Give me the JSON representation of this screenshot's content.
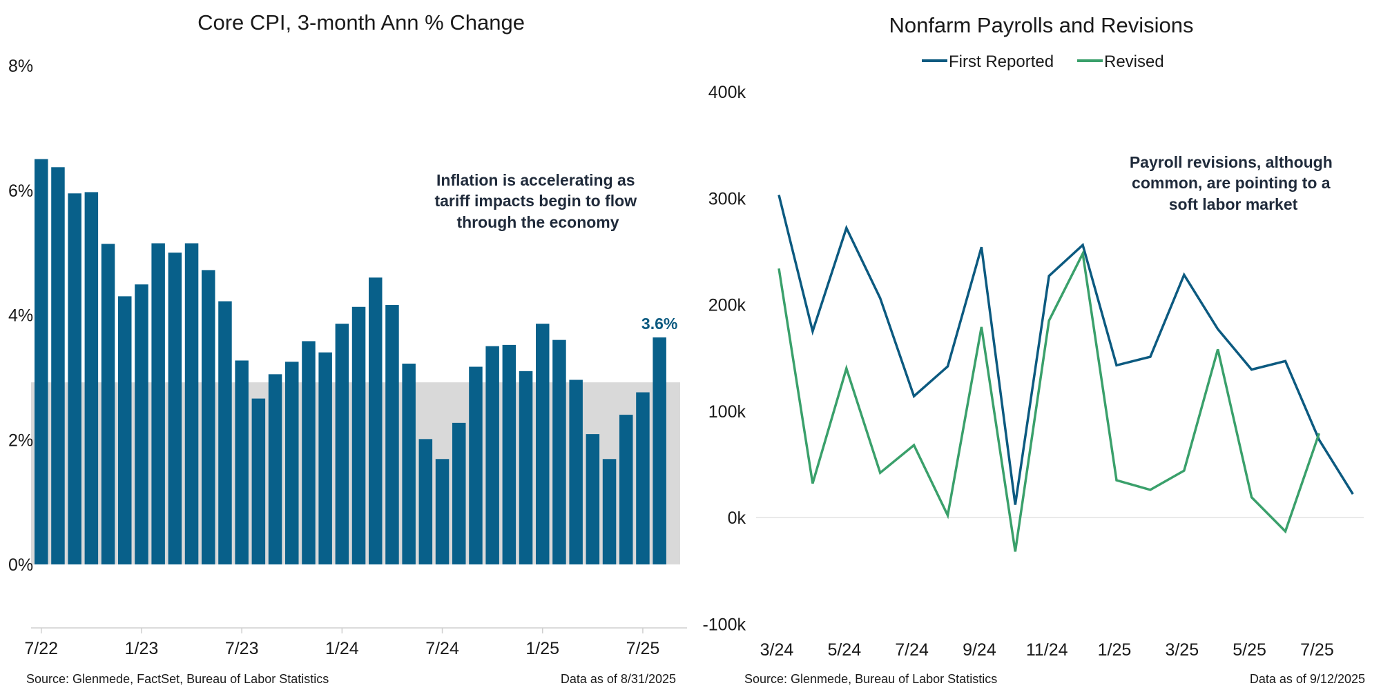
{
  "colors": {
    "bar": "#08608a",
    "band": "#d9d9d9",
    "first_reported": "#0c5a80",
    "revised": "#3aa06b",
    "axis": "#cfcfcf",
    "label": "#0c5a80"
  },
  "chart_data": [
    {
      "type": "bar",
      "title": "Core CPI, 3-month Ann % Change",
      "ylim": [
        -1,
        8
      ],
      "y_ticks": [
        "0%",
        "2%",
        "4%",
        "6%",
        "8%"
      ],
      "y_tick_values": [
        0,
        2,
        4,
        6,
        8
      ],
      "x_tick_labels": [
        "7/22",
        "1/23",
        "7/23",
        "1/24",
        "7/24",
        "1/25",
        "7/25"
      ],
      "x_tick_indices": [
        0,
        6,
        12,
        18,
        24,
        30,
        36
      ],
      "band": [
        0,
        2.92
      ],
      "values": [
        6.5,
        6.37,
        5.95,
        5.97,
        5.14,
        4.3,
        4.49,
        5.15,
        5.0,
        5.15,
        4.72,
        4.22,
        3.27,
        2.66,
        3.05,
        3.25,
        3.58,
        3.4,
        3.86,
        4.13,
        4.6,
        4.16,
        3.22,
        2.01,
        1.69,
        2.27,
        3.17,
        3.5,
        3.52,
        3.1,
        3.86,
        3.6,
        2.96,
        2.09,
        1.69,
        2.4,
        2.76,
        3.64
      ],
      "last_label": "3.6%",
      "annotation": [
        "Inflation is accelerating as",
        "tariff impacts begin to flow",
        "through the economy"
      ],
      "source": "Source: Glenmede, FactSet, Bureau of Labor Statistics",
      "data_date": "Data as of 8/31/2025"
    },
    {
      "type": "line",
      "title": "Nonfarm Payrolls and Revisions",
      "ylim": [
        -100,
        400
      ],
      "y_ticks": [
        "-100k",
        "0k",
        "100k",
        "200k",
        "300k",
        "400k"
      ],
      "y_tick_values": [
        -100,
        0,
        100,
        200,
        300,
        400
      ],
      "x": [
        "3/24",
        "4/24",
        "5/24",
        "6/24",
        "7/24",
        "8/24",
        "9/24",
        "10/24",
        "11/24",
        "12/24",
        "1/25",
        "2/25",
        "3/25",
        "4/25",
        "5/25",
        "6/25",
        "7/25",
        "8/25"
      ],
      "x_tick_labels": [
        "3/24",
        "5/24",
        "7/24",
        "9/24",
        "11/24",
        "1/25",
        "3/25",
        "5/25",
        "7/25"
      ],
      "x_tick_indices": [
        0,
        2,
        4,
        6,
        8,
        10,
        12,
        14,
        16
      ],
      "series": [
        {
          "name": "First Reported",
          "values": [
            303,
            175,
            272,
            206,
            114,
            142,
            254,
            12,
            227,
            256,
            143,
            151,
            228,
            177,
            139,
            147,
            73,
            22
          ]
        },
        {
          "name": "Revised",
          "values": [
            234,
            32,
            140,
            42,
            68,
            2,
            179,
            -32,
            185,
            248,
            35,
            26,
            44,
            158,
            19,
            -13,
            79,
            null
          ]
        }
      ],
      "legend_position": "top-center",
      "annotation": [
        "Payroll revisions, although",
        "common, are pointing to a",
        "soft labor market"
      ],
      "source": "Source: Glenmede, Bureau of Labor Statistics",
      "data_date": "Data as of 9/12/2025"
    }
  ]
}
